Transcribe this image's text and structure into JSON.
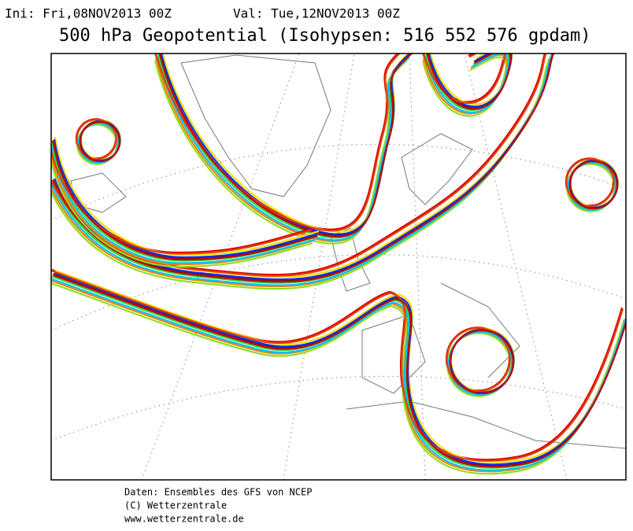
{
  "header": {
    "init": "Ini: Fri,08NOV2013 00Z",
    "valid": "Val: Tue,12NOV2013 00Z",
    "title": "500 hPa Geopotential (Isohypsen: 516 552 576 gpdam)"
  },
  "footer": {
    "lines": [
      "Daten: Ensembles des GFS von NCEP",
      "(C) Wetterzentrale",
      "www.wetterzentrale.de"
    ]
  }
}
